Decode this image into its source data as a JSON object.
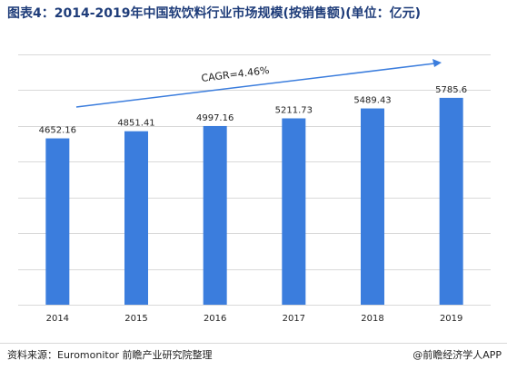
{
  "title": "图表4：2014-2019年中国软饮料行业市场规模(按销售额)(单位：亿元)",
  "source": "资料来源：Euromonitor 前瞻产业研究院整理",
  "credit": "@前瞻经济学人APP",
  "chart_data": {
    "type": "bar",
    "categories": [
      "2014",
      "2015",
      "2016",
      "2017",
      "2018",
      "2019"
    ],
    "values": [
      4652.16,
      4851.41,
      4997.16,
      5211.73,
      5489.43,
      5785.6
    ],
    "value_labels": [
      "4652.16",
      "4851.41",
      "4997.16",
      "5211.73",
      "5489.43",
      "5785.6"
    ],
    "title": "图表4：2014-2019年中国软饮料行业市场规模(按销售额)(单位：亿元)",
    "xlabel": "",
    "ylabel": "",
    "ylim": [
      0,
      7000
    ],
    "grid": true,
    "bar_color": "#3b7ddd",
    "annotation": "CAGR=4.46%"
  }
}
